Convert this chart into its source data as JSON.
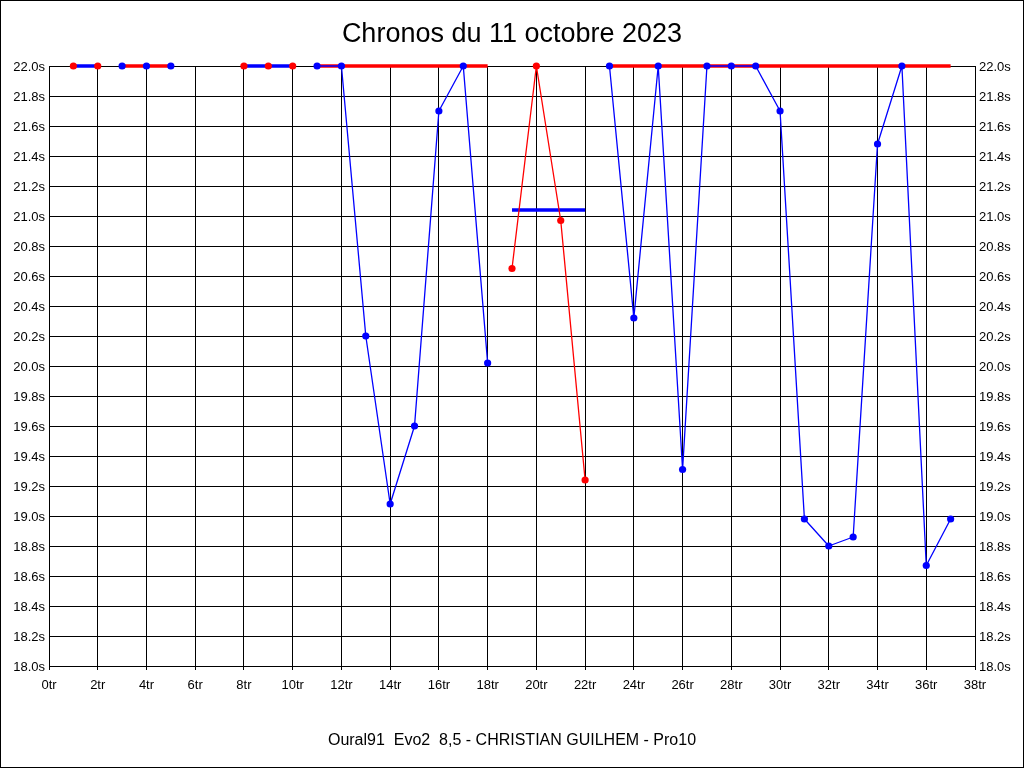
{
  "chart_data": {
    "type": "line",
    "title": "Chronos du 11 octobre 2023",
    "annotations": [
      "Oural91  Evo2  8,5 - CHRISTIAN GUILHEM - Pro10"
    ],
    "x": [
      1,
      2,
      3,
      4,
      5,
      6,
      7,
      8,
      9,
      10,
      11,
      12,
      13,
      14,
      15,
      16,
      17,
      18,
      19,
      20,
      21,
      22,
      23,
      24,
      25,
      26,
      27,
      28,
      29,
      30,
      31,
      32,
      33,
      34,
      35,
      36,
      37
    ],
    "series": [
      {
        "color": "#0000ff",
        "marker": "none",
        "values": [
          22,
          22,
          null,
          null,
          null,
          null,
          null,
          22,
          22,
          22,
          null,
          null,
          null,
          null,
          null,
          null,
          null,
          null,
          21.04,
          21.04,
          21.04,
          21.04,
          null,
          null,
          null,
          null,
          null,
          null,
          null,
          null,
          null,
          null,
          null,
          null,
          null,
          null,
          null
        ]
      },
      {
        "color": "#ff0000",
        "marker": "none",
        "values": [
          null,
          null,
          22,
          22,
          22,
          null,
          null,
          null,
          null,
          null,
          22,
          22,
          22,
          22,
          22,
          22,
          22,
          22,
          null,
          null,
          null,
          null,
          22,
          22,
          22,
          22,
          22,
          22,
          22,
          22,
          22,
          22,
          22,
          22,
          22,
          22,
          22
        ]
      },
      {
        "color": "#ff0000",
        "x": [
          19,
          20,
          21,
          22
        ],
        "values": [
          20.65,
          22,
          20.97,
          19.24
        ]
      },
      {
        "color": "#0000ff",
        "values": [
          null,
          null,
          null,
          null,
          null,
          null,
          null,
          null,
          null,
          null,
          22,
          22,
          20.2,
          19.08,
          19.6,
          21.7,
          22,
          20.02,
          null,
          null,
          null,
          null,
          22,
          20.32,
          22,
          19.31,
          22,
          22,
          22,
          21.7,
          18.98,
          18.8,
          18.86,
          21.48,
          22,
          18.67,
          18.98
        ]
      },
      {
        "type": "scatter",
        "color": "#ff0000",
        "x": [
          1,
          2,
          8,
          9,
          10
        ],
        "values": [
          22,
          22,
          22,
          22,
          22
        ]
      },
      {
        "type": "scatter",
        "color": "#0000ff",
        "x": [
          3,
          4,
          5
        ],
        "values": [
          22,
          22,
          22
        ]
      }
    ],
    "xlim": [
      0,
      38
    ],
    "xticks": [
      {
        "value": 0,
        "label": "0tr"
      },
      {
        "value": 2,
        "label": "2tr"
      },
      {
        "value": 4,
        "label": "4tr"
      },
      {
        "value": 6,
        "label": "6tr"
      },
      {
        "value": 8,
        "label": "8tr"
      },
      {
        "value": 10,
        "label": "10tr"
      },
      {
        "value": 12,
        "label": "12tr"
      },
      {
        "value": 14,
        "label": "14tr"
      },
      {
        "value": 16,
        "label": "16tr"
      },
      {
        "value": 18,
        "label": "18tr"
      },
      {
        "value": 20,
        "label": "20tr"
      },
      {
        "value": 22,
        "label": "22tr"
      },
      {
        "value": 24,
        "label": "24tr"
      },
      {
        "value": 26,
        "label": "26tr"
      },
      {
        "value": 28,
        "label": "28tr"
      },
      {
        "value": 30,
        "label": "30tr"
      },
      {
        "value": 32,
        "label": "32tr"
      },
      {
        "value": 34,
        "label": "34tr"
      },
      {
        "value": 36,
        "label": "36tr"
      },
      {
        "value": 38,
        "label": "38tr"
      }
    ],
    "ylim": [
      18,
      22
    ],
    "yticks": [
      {
        "value": 18,
        "label": "18.0s"
      },
      {
        "value": 18.2,
        "label": "18.2s"
      },
      {
        "value": 18.4,
        "label": "18.4s"
      },
      {
        "value": 18.6,
        "label": "18.6s"
      },
      {
        "value": 18.8,
        "label": "18.8s"
      },
      {
        "value": 19,
        "label": "19.0s"
      },
      {
        "value": 19.2,
        "label": "19.2s"
      },
      {
        "value": 19.4,
        "label": "19.4s"
      },
      {
        "value": 19.6,
        "label": "19.6s"
      },
      {
        "value": 19.8,
        "label": "19.8s"
      },
      {
        "value": 20,
        "label": "20.0s"
      },
      {
        "value": 20.2,
        "label": "20.2s"
      },
      {
        "value": 20.4,
        "label": "20.4s"
      },
      {
        "value": 20.6,
        "label": "20.6s"
      },
      {
        "value": 20.8,
        "label": "20.8s"
      },
      {
        "value": 21,
        "label": "21.0s"
      },
      {
        "value": 21.2,
        "label": "21.2s"
      },
      {
        "value": 21.4,
        "label": "21.4s"
      },
      {
        "value": 21.6,
        "label": "21.6s"
      },
      {
        "value": 21.8,
        "label": "21.8s"
      },
      {
        "value": 22,
        "label": "22.0s"
      }
    ],
    "y2lim": [
      18,
      22
    ],
    "y2ticks": [
      {
        "value": 18,
        "label": "18.0s"
      },
      {
        "value": 18.2,
        "label": "18.2s"
      },
      {
        "value": 18.4,
        "label": "18.4s"
      },
      {
        "value": 18.6,
        "label": "18.6s"
      },
      {
        "value": 18.8,
        "label": "18.8s"
      },
      {
        "value": 19,
        "label": "19.0s"
      },
      {
        "value": 19.2,
        "label": "19.2s"
      },
      {
        "value": 19.4,
        "label": "19.4s"
      },
      {
        "value": 19.6,
        "label": "19.6s"
      },
      {
        "value": 19.8,
        "label": "19.8s"
      },
      {
        "value": 20,
        "label": "20.0s"
      },
      {
        "value": 20.2,
        "label": "20.2s"
      },
      {
        "value": 20.4,
        "label": "20.4s"
      },
      {
        "value": 20.6,
        "label": "20.6s"
      },
      {
        "value": 20.8,
        "label": "20.8s"
      },
      {
        "value": 21,
        "label": "21.0s"
      },
      {
        "value": 21.2,
        "label": "21.2s"
      },
      {
        "value": 21.4,
        "label": "21.4s"
      },
      {
        "value": 21.6,
        "label": "21.6s"
      },
      {
        "value": 21.8,
        "label": "21.8s"
      },
      {
        "value": 22,
        "label": "22.0s"
      }
    ],
    "grid": true,
    "marker": "circle"
  }
}
